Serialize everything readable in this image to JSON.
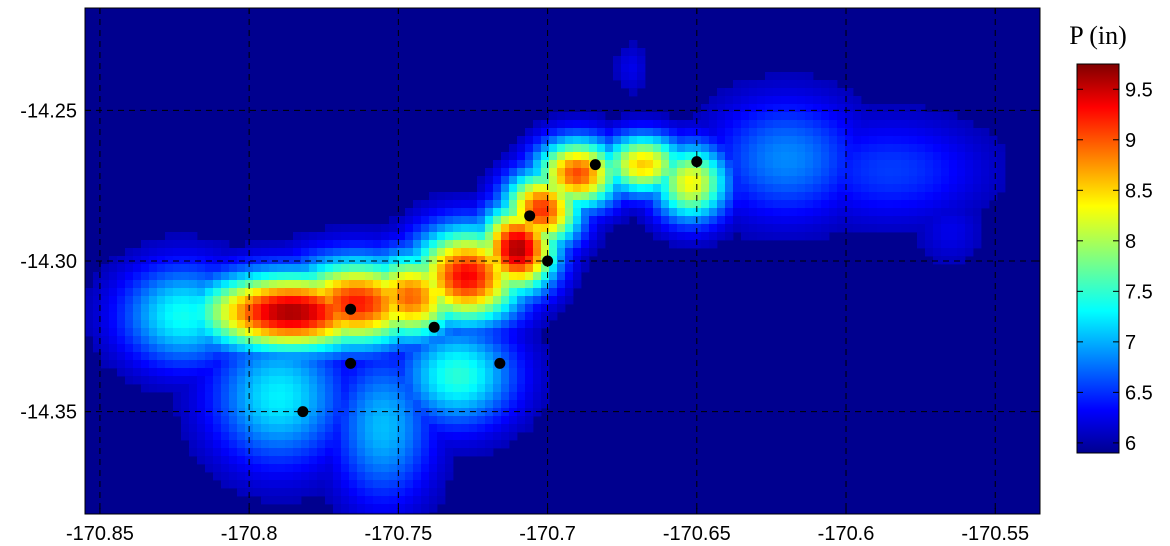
{
  "chart_data": {
    "type": "heatmap",
    "title": "",
    "xlabel": "",
    "ylabel": "",
    "xlim": [
      -170.855,
      -170.535
    ],
    "ylim": [
      -14.384,
      -14.216
    ],
    "x_ticks": [
      {
        "value": -170.85,
        "label": "-170.85"
      },
      {
        "value": -170.8,
        "label": "-170.8"
      },
      {
        "value": -170.75,
        "label": "-170.75"
      },
      {
        "value": -170.7,
        "label": "-170.7"
      },
      {
        "value": -170.65,
        "label": "-170.65"
      },
      {
        "value": -170.6,
        "label": "-170.6"
      },
      {
        "value": -170.55,
        "label": "-170.55"
      }
    ],
    "y_ticks": [
      {
        "value": -14.25,
        "label": "-14.25"
      },
      {
        "value": -14.3,
        "label": "-14.30"
      },
      {
        "value": -14.35,
        "label": "-14.35"
      }
    ],
    "grid": true,
    "background_color": "#00008f",
    "colorbar": {
      "title": "P (in)",
      "min": 5.9,
      "max": 9.75,
      "ticks": [
        {
          "value": 6,
          "label": "6"
        },
        {
          "value": 6.5,
          "label": "6.5"
        },
        {
          "value": 7,
          "label": "7"
        },
        {
          "value": 7.5,
          "label": "7.5"
        },
        {
          "value": 8,
          "label": "8"
        },
        {
          "value": 8.5,
          "label": "8.5"
        },
        {
          "value": 9,
          "label": "9"
        },
        {
          "value": 9.5,
          "label": "9.5"
        }
      ],
      "colormap": "jet"
    },
    "stations": [
      {
        "x": -170.782,
        "y": -14.35
      },
      {
        "x": -170.766,
        "y": -14.316
      },
      {
        "x": -170.766,
        "y": -14.334
      },
      {
        "x": -170.738,
        "y": -14.322
      },
      {
        "x": -170.716,
        "y": -14.334
      },
      {
        "x": -170.706,
        "y": -14.285
      },
      {
        "x": -170.7,
        "y": -14.3
      },
      {
        "x": -170.684,
        "y": -14.268
      },
      {
        "x": -170.65,
        "y": -14.267
      }
    ],
    "field_peaks": [
      {
        "x": -170.786,
        "y": -14.317,
        "value": 9.6,
        "sx": 0.022,
        "sy": 0.009
      },
      {
        "x": -170.764,
        "y": -14.314,
        "value": 9.2,
        "sx": 0.017,
        "sy": 0.01
      },
      {
        "x": -170.746,
        "y": -14.312,
        "value": 8.9,
        "sx": 0.012,
        "sy": 0.01
      },
      {
        "x": -170.727,
        "y": -14.305,
        "value": 9.3,
        "sx": 0.013,
        "sy": 0.011
      },
      {
        "x": -170.71,
        "y": -14.296,
        "value": 9.6,
        "sx": 0.009,
        "sy": 0.01
      },
      {
        "x": -170.702,
        "y": -14.283,
        "value": 9.1,
        "sx": 0.009,
        "sy": 0.009
      },
      {
        "x": -170.69,
        "y": -14.271,
        "value": 9.0,
        "sx": 0.01,
        "sy": 0.008
      },
      {
        "x": -170.668,
        "y": -14.268,
        "value": 8.5,
        "sx": 0.01,
        "sy": 0.007
      },
      {
        "x": -170.652,
        "y": -14.274,
        "value": 8.3,
        "sx": 0.009,
        "sy": 0.009
      },
      {
        "x": -170.62,
        "y": -14.266,
        "value": 6.9,
        "sx": 0.018,
        "sy": 0.014
      },
      {
        "x": -170.585,
        "y": -14.27,
        "value": 6.6,
        "sx": 0.022,
        "sy": 0.012
      },
      {
        "x": -170.565,
        "y": -14.29,
        "value": 6.3,
        "sx": 0.008,
        "sy": 0.008
      },
      {
        "x": -170.79,
        "y": -14.345,
        "value": 7.3,
        "sx": 0.016,
        "sy": 0.016
      },
      {
        "x": -170.755,
        "y": -14.355,
        "value": 7.1,
        "sx": 0.012,
        "sy": 0.018
      },
      {
        "x": -170.73,
        "y": -14.338,
        "value": 7.5,
        "sx": 0.014,
        "sy": 0.012
      },
      {
        "x": -170.822,
        "y": -14.318,
        "value": 7.4,
        "sx": 0.015,
        "sy": 0.012
      },
      {
        "x": -170.835,
        "y": -14.325,
        "value": 6.4,
        "sx": 0.01,
        "sy": 0.008
      },
      {
        "x": -170.672,
        "y": -14.236,
        "value": 6.3,
        "sx": 0.004,
        "sy": 0.006
      }
    ]
  }
}
